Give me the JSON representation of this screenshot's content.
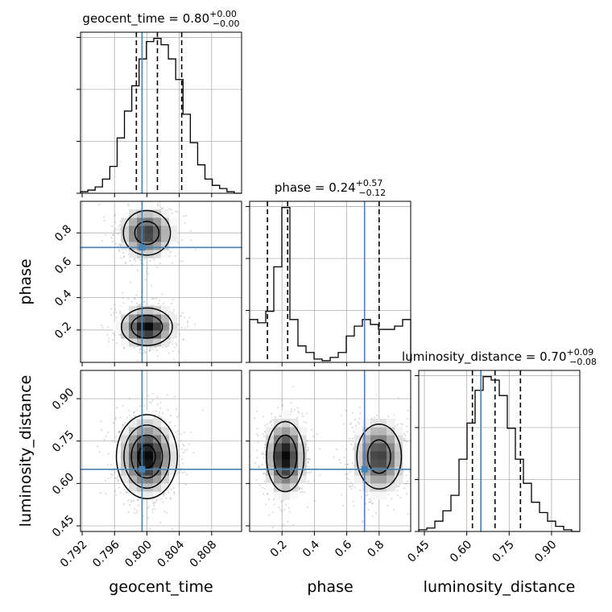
{
  "chart_data": {
    "type": "corner",
    "params": [
      "geocent_time",
      "phase",
      "luminosity_distance"
    ],
    "titles": [
      {
        "param": "geocent_time",
        "prefix": "geocent_time = ",
        "median": "0.80",
        "plus": "+0.00",
        "minus": "−0.00"
      },
      {
        "param": "phase",
        "prefix": "phase = ",
        "median": "0.24",
        "plus": "+0.57",
        "minus": "−0.12"
      },
      {
        "param": "luminosity_distance",
        "prefix": "luminosity_distance = ",
        "median": "0.70",
        "plus": "+0.09",
        "minus": "−0.08"
      }
    ],
    "axis_labels": {
      "x": [
        "geocent_time",
        "phase",
        "luminosity_distance"
      ],
      "y": [
        "phase",
        "luminosity_distance"
      ]
    },
    "ranges": {
      "geocent_time": [
        0.7918,
        0.8117
      ],
      "phase": [
        0.0,
        0.995
      ],
      "luminosity_distance": [
        0.43,
        1.0
      ]
    },
    "ticks": {
      "geocent_time": [
        "0.792",
        "0.796",
        "0.800",
        "0.804",
        "0.808"
      ],
      "phase": [
        "0.2",
        "0.4",
        "0.6",
        "0.8"
      ],
      "luminosity_distance": [
        "0.45",
        "0.60",
        "0.75",
        "0.90"
      ]
    },
    "truths": {
      "geocent_time": 0.7994,
      "phase": 0.71,
      "luminosity_distance": 0.65
    },
    "quantiles": {
      "geocent_time": [
        0.7987,
        0.8013,
        0.8043
      ],
      "phase": [
        0.11,
        0.235,
        0.8
      ],
      "luminosity_distance": [
        0.62,
        0.7,
        0.79
      ]
    },
    "histograms": {
      "geocent_time": [
        1,
        2,
        4,
        9,
        17,
        35,
        52,
        68,
        85,
        96,
        98,
        94,
        85,
        72,
        50,
        32,
        18,
        9,
        5,
        3,
        1,
        0
      ],
      "phase": [
        26,
        24,
        31,
        58,
        94,
        26,
        10,
        6,
        2,
        1,
        3,
        6,
        16,
        22,
        26,
        23,
        20,
        20,
        22,
        26
      ],
      "luminosity_distance": [
        1,
        2,
        6,
        12,
        21,
        42,
        63,
        82,
        90,
        88,
        79,
        60,
        42,
        28,
        17,
        11,
        6,
        3,
        1,
        0
      ]
    },
    "grid": true,
    "legend": "none"
  }
}
